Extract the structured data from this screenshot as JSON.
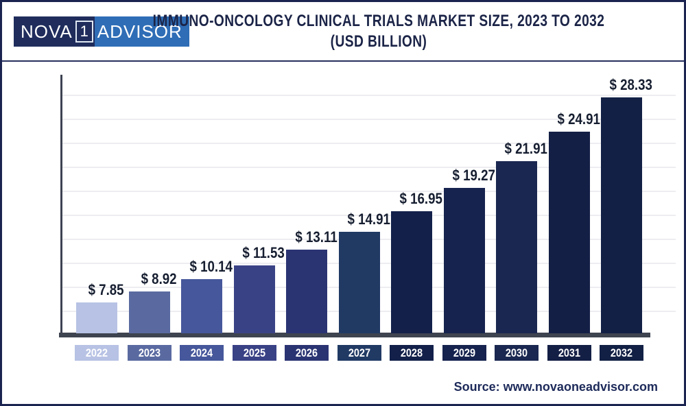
{
  "header": {
    "logo": {
      "part_nova": "NOVA",
      "part_one": "1",
      "part_advisor": "ADVISOR"
    },
    "title_line1": "IMMUNO-ONCOLOGY CLINICAL TRIALS MARKET SIZE, 2023 TO 2032",
    "title_line2": "(USD BILLION)"
  },
  "chart_data": {
    "type": "bar",
    "title": "Immuno-Oncology Clinical Trials Market Size, 2023 to 2032 (USD Billion)",
    "unit": "USD Billion",
    "categories": [
      "2022",
      "2023",
      "2024",
      "2025",
      "2026",
      "2027",
      "2028",
      "2029",
      "2030",
      "2031",
      "2032"
    ],
    "values": [
      7.85,
      8.92,
      10.14,
      11.53,
      13.11,
      14.91,
      16.95,
      19.27,
      21.91,
      24.91,
      28.33
    ],
    "value_labels": [
      "$ 7.85",
      "$ 8.92",
      "$ 10.14",
      "$ 11.53",
      "$ 13.11",
      "$ 14.91",
      "$ 16.95",
      "$ 19.27",
      "$ 21.91",
      "$ 24.91",
      "$ 28.33"
    ],
    "bar_colors": [
      "#b7c2e4",
      "#5a6aa1",
      "#46579b",
      "#3a4286",
      "#2b3473",
      "#203a64",
      "#12204a",
      "#16234e",
      "#1a2750",
      "#141f46",
      "#122045"
    ],
    "xlabel": "",
    "ylabel": "",
    "ylim": [
      4.75,
      30
    ],
    "grid": true,
    "legend": false
  },
  "footer": {
    "source_label": "Source: www.novaoneadvisor.com"
  },
  "colors": {
    "frame": "#1b2450",
    "logo_dark": "#1f2c5c",
    "logo_blue": "#2f6db6",
    "title_text": "#1b2447",
    "axis": "#3d4352",
    "gridline": "#ededf1",
    "value_text": "#161e30",
    "year_text": "#ffffff",
    "source_text": "#1d2a5a"
  }
}
